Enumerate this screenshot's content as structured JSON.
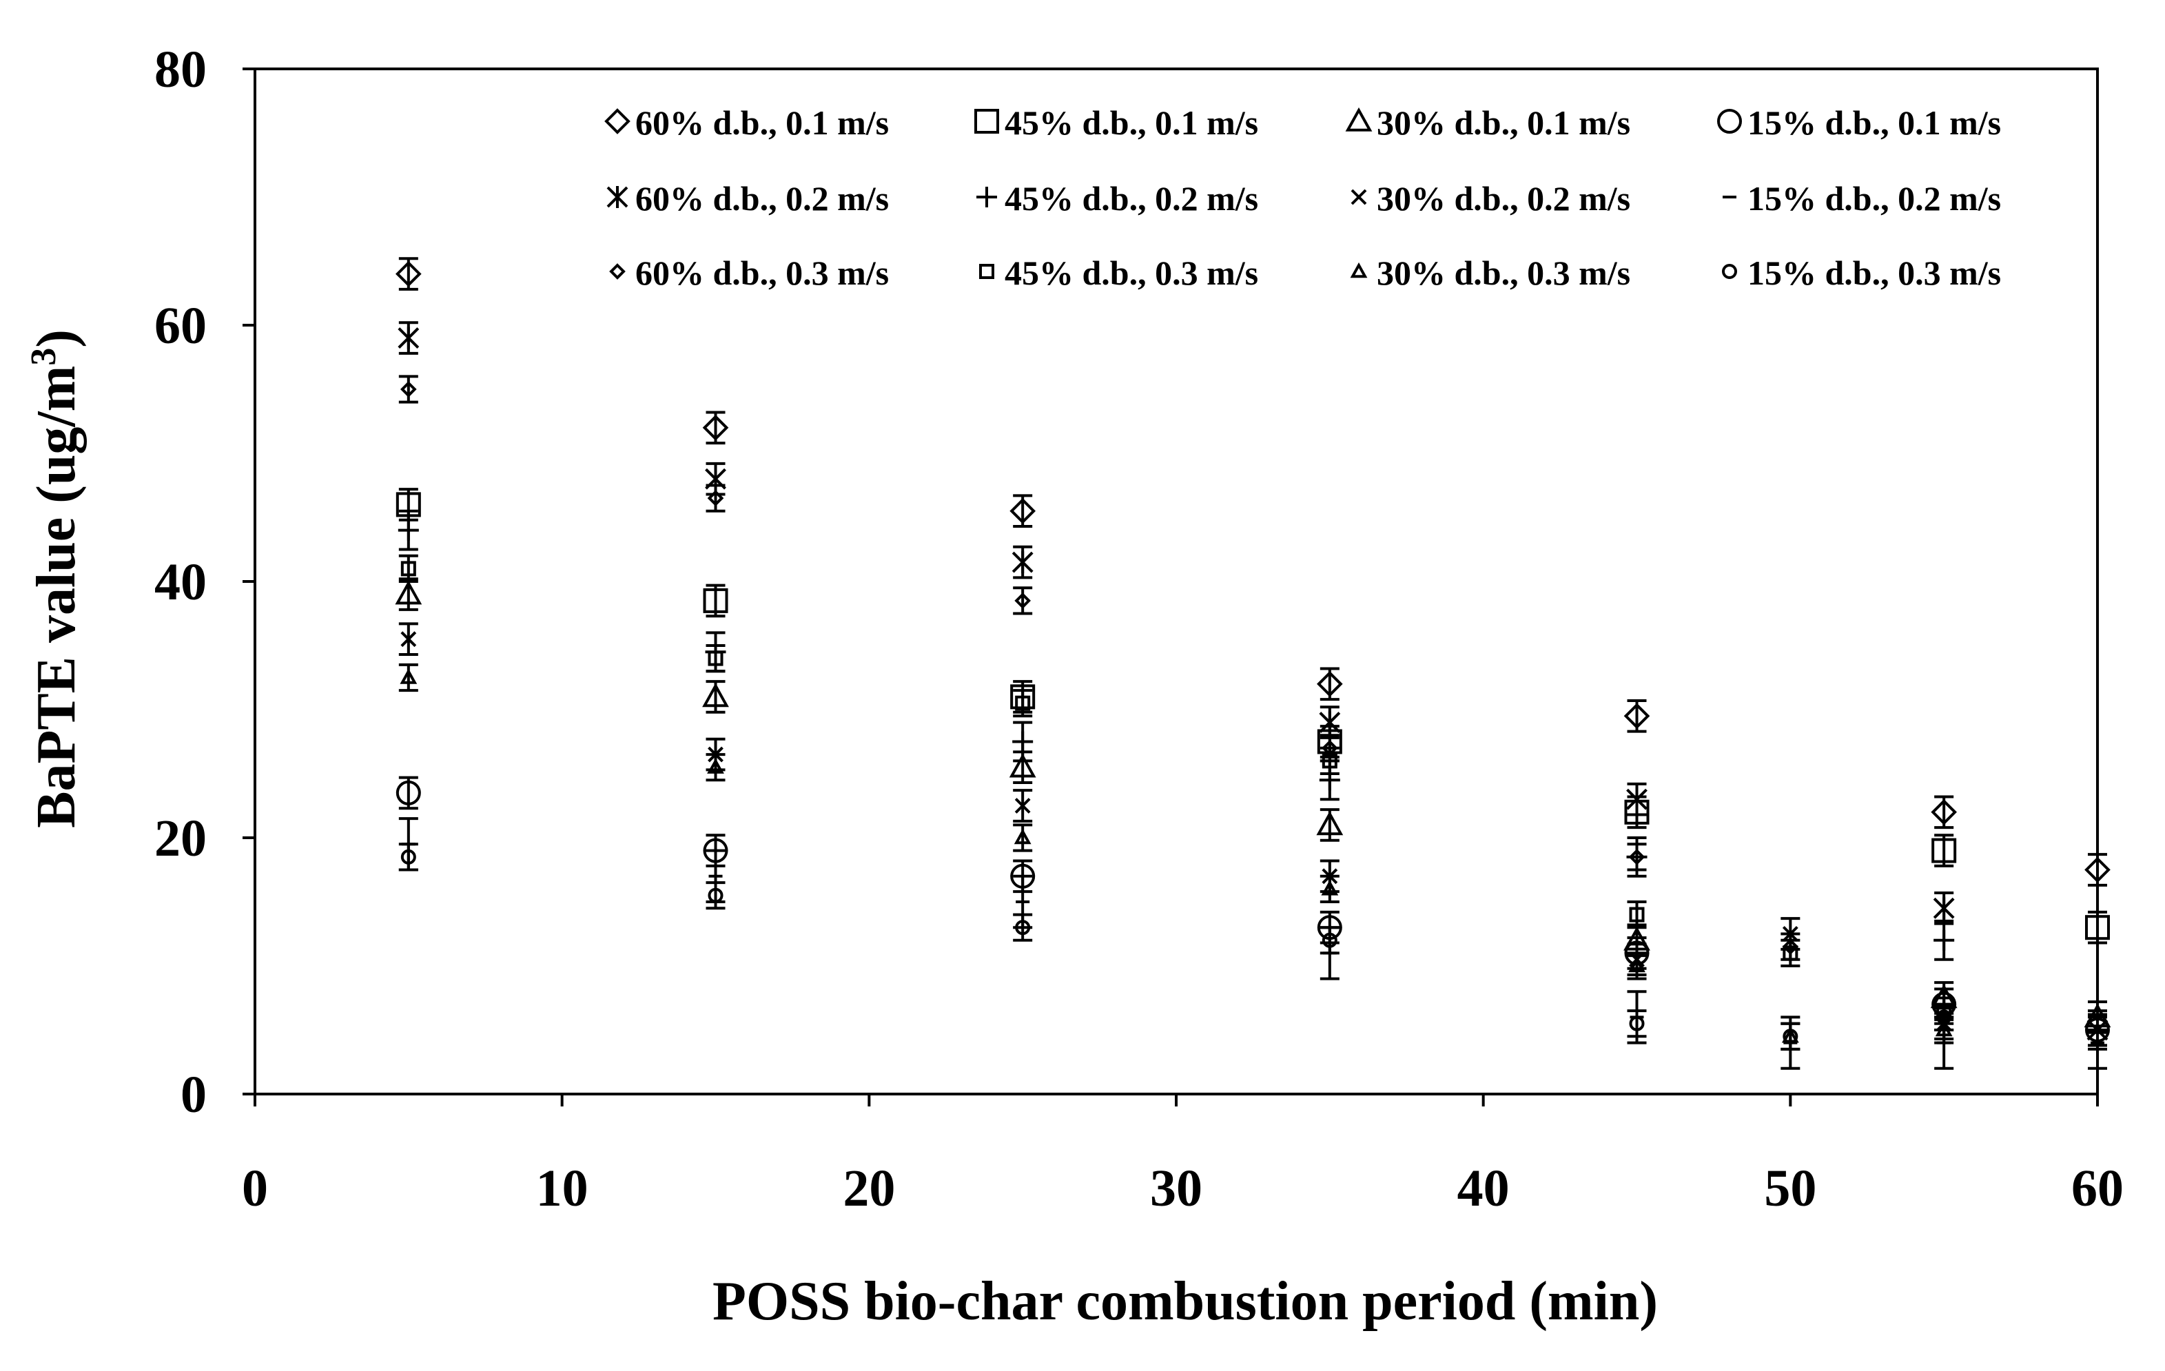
{
  "chart_data": {
    "type": "scatter",
    "xlabel": "POSS bio-char combustion period (min)",
    "ylabel": "BaPTE value (ug/m",
    "ylabel_superscript": "3",
    "ylabel_close": ")",
    "xlim": [
      0,
      60
    ],
    "ylim": [
      0,
      80
    ],
    "xticks": [
      "0",
      "10",
      "20",
      "30",
      "40",
      "50",
      "60"
    ],
    "yticks": [
      "0",
      "20",
      "40",
      "60",
      "80"
    ],
    "grid": false,
    "legend_position": "top-right",
    "series": [
      {
        "name": "60% d.b., 0.1 m/s",
        "marker": "diamond-large",
        "points": [
          [
            5,
            64
          ],
          [
            15,
            52
          ],
          [
            25,
            45.5
          ],
          [
            35,
            32
          ],
          [
            45,
            29.5
          ],
          [
            55,
            22
          ],
          [
            60,
            17.5
          ]
        ],
        "err": 1.2
      },
      {
        "name": "45% d.b., 0.1 m/s",
        "marker": "square-large",
        "points": [
          [
            5,
            46
          ],
          [
            15,
            38.5
          ],
          [
            25,
            31
          ],
          [
            35,
            27.5
          ],
          [
            45,
            22
          ],
          [
            55,
            19
          ],
          [
            60,
            13
          ]
        ],
        "err": 1.2
      },
      {
        "name": "30% d.b., 0.1 m/s",
        "marker": "triangle-large",
        "points": [
          [
            5,
            39
          ],
          [
            15,
            31
          ],
          [
            25,
            25.5
          ],
          [
            35,
            21
          ],
          [
            45,
            12
          ],
          [
            55,
            7.5
          ],
          [
            60,
            6
          ]
        ],
        "err": 1.2
      },
      {
        "name": "15% d.b., 0.1 m/s",
        "marker": "circle-large",
        "points": [
          [
            5,
            23.5
          ],
          [
            15,
            19
          ],
          [
            25,
            17
          ],
          [
            35,
            13
          ],
          [
            45,
            11
          ],
          [
            55,
            7
          ],
          [
            60,
            5
          ]
        ],
        "err": 1.2
      },
      {
        "name": "60% d.b., 0.2 m/s",
        "marker": "asterisk",
        "points": [
          [
            5,
            59
          ],
          [
            15,
            48
          ],
          [
            25,
            41.5
          ],
          [
            35,
            29
          ],
          [
            45,
            23
          ],
          [
            55,
            14.5
          ],
          [
            60,
            5
          ]
        ],
        "err": 1.2
      },
      {
        "name": "45% d.b., 0.2 m/s",
        "marker": "plus",
        "points": [
          [
            5,
            44
          ],
          [
            15,
            34.5
          ],
          [
            25,
            27.5
          ],
          [
            35,
            24.5
          ],
          [
            45,
            18.5
          ],
          [
            55,
            12
          ],
          [
            60,
            5
          ]
        ],
        "err": 1.5
      },
      {
        "name": "30% d.b., 0.2 m/s",
        "marker": "cross",
        "points": [
          [
            5,
            35.5
          ],
          [
            15,
            26.5
          ],
          [
            25,
            22.5
          ],
          [
            35,
            17
          ],
          [
            45,
            10.5
          ],
          [
            50,
            12.5
          ],
          [
            55,
            5.5
          ]
        ],
        "err": 1.2
      },
      {
        "name": "15% d.b., 0.2 m/s",
        "marker": "dash",
        "points": [
          [
            5,
            19.5
          ],
          [
            15,
            17
          ],
          [
            25,
            15
          ],
          [
            35,
            11
          ],
          [
            45,
            6
          ],
          [
            50,
            4
          ],
          [
            55,
            4
          ],
          [
            60,
            4
          ]
        ],
        "err": 2.0
      },
      {
        "name": "60% d.b., 0.3 m/s",
        "marker": "diamond-small",
        "points": [
          [
            5,
            55
          ],
          [
            15,
            46.5
          ],
          [
            25,
            38.5
          ],
          [
            35,
            27
          ],
          [
            45,
            18.5
          ],
          [
            50,
            11.5
          ],
          [
            55,
            6
          ]
        ],
        "err": 1.0
      },
      {
        "name": "45% d.b., 0.3 m/s",
        "marker": "square-small",
        "points": [
          [
            5,
            41
          ],
          [
            15,
            34
          ],
          [
            25,
            30.5
          ],
          [
            35,
            26
          ],
          [
            45,
            14
          ],
          [
            50,
            11
          ],
          [
            55,
            6.5
          ]
        ],
        "err": 1.0
      },
      {
        "name": "30% d.b., 0.3 m/s",
        "marker": "triangle-small",
        "points": [
          [
            5,
            32.5
          ],
          [
            15,
            25.5
          ],
          [
            25,
            20
          ],
          [
            35,
            16
          ],
          [
            45,
            10
          ],
          [
            50,
            4.5
          ],
          [
            55,
            5
          ]
        ],
        "err": 1.0
      },
      {
        "name": "15% d.b., 0.3 m/s",
        "marker": "circle-small",
        "points": [
          [
            5,
            18.5
          ],
          [
            15,
            15.5
          ],
          [
            25,
            13
          ],
          [
            35,
            12
          ],
          [
            45,
            5.5
          ],
          [
            50,
            4.5
          ],
          [
            55,
            6
          ]
        ],
        "err": 1.0
      }
    ]
  }
}
